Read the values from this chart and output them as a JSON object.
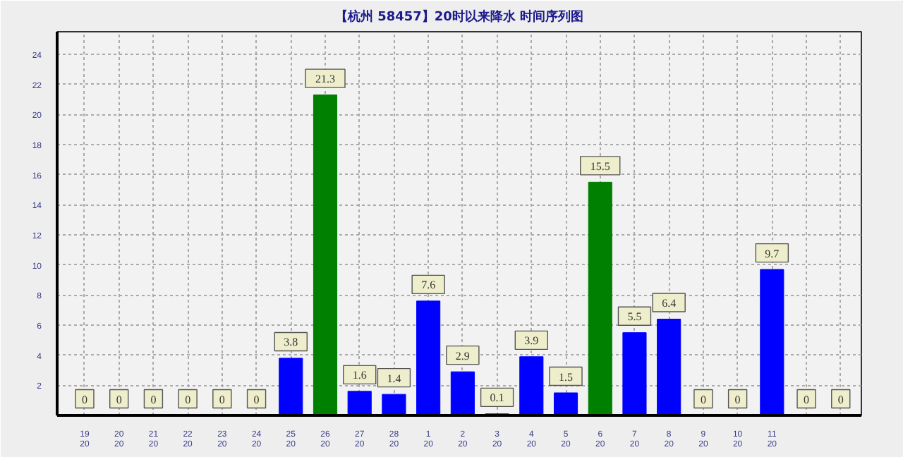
{
  "chart_data": {
    "type": "bar",
    "title": "【杭州 58457】20时以来降水 时间序列图",
    "categories": [
      "19\n20",
      "20\n20",
      "21\n20",
      "22\n20",
      "23\n20",
      "24\n20",
      "25\n20",
      "26\n20",
      "27\n20",
      "28\n20",
      "1\n20",
      "2\n20",
      "3\n20",
      "4\n20",
      "5\n20",
      "6\n20",
      "7\n20",
      "8\n20",
      "9\n20",
      "10\n20",
      "11\n20",
      null,
      null
    ],
    "values": [
      0,
      0,
      0,
      0,
      0,
      0,
      3.8,
      21.3,
      1.6,
      1.4,
      7.6,
      2.9,
      0.1,
      3.9,
      1.5,
      15.5,
      5.5,
      6.4,
      0,
      0,
      9.7,
      0,
      0
    ],
    "colors": [
      "#0000ff",
      "#0000ff",
      "#0000ff",
      "#0000ff",
      "#0000ff",
      "#0000ff",
      "#0000ff",
      "#008000",
      "#0000ff",
      "#0000ff",
      "#0000ff",
      "#0000ff",
      "#0000ff",
      "#0000ff",
      "#0000ff",
      "#008000",
      "#0000ff",
      "#0000ff",
      "#0000ff",
      "#0000ff",
      "#0000ff",
      "#0000ff",
      "#0000ff"
    ],
    "ylim": [
      0,
      25.5
    ],
    "yticks": [
      2,
      4,
      6,
      8,
      10,
      12,
      14,
      16,
      18,
      20,
      22,
      24
    ],
    "grid": true,
    "data_labels": true
  }
}
